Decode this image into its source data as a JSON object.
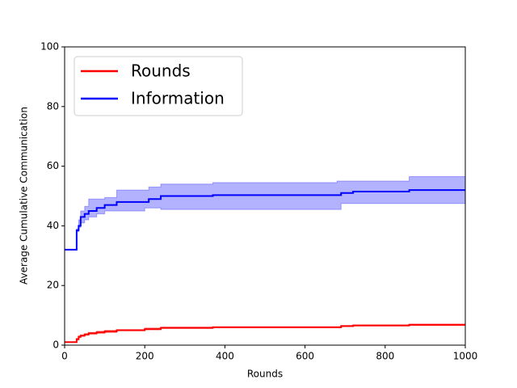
{
  "chart_data": {
    "type": "line",
    "xlabel": "Rounds",
    "ylabel": "Average Cumulative Communication",
    "xlim": [
      0,
      1000
    ],
    "xticks": [
      0,
      200,
      400,
      600,
      800,
      1000
    ],
    "ylim": [
      0,
      100
    ],
    "yticks": [
      0,
      20,
      40,
      60,
      80,
      100
    ],
    "grid": false,
    "legend": "upper left",
    "drawstyle": "steps-post",
    "band_opacity": 0.3,
    "series": [
      {
        "name": "Rounds",
        "color": "#ff0000",
        "x": [
          0,
          30,
          35,
          40,
          50,
          60,
          80,
          100,
          130,
          200,
          240,
          370,
          690,
          720,
          860,
          1000
        ],
        "values": [
          1,
          2,
          2.8,
          3.2,
          3.6,
          4,
          4.3,
          4.6,
          5,
          5.4,
          5.8,
          6,
          6.4,
          6.6,
          6.8,
          6.8
        ],
        "lower": [
          1,
          1.7,
          2.5,
          2.9,
          3.3,
          3.6,
          3.9,
          4.2,
          4.8,
          5.1,
          5.6,
          5.8,
          6.2,
          6.4,
          6.6,
          6.6
        ],
        "upper": [
          1,
          2.3,
          3.1,
          3.5,
          3.9,
          4.3,
          4.7,
          5,
          5.2,
          5.8,
          6.1,
          6.2,
          6.6,
          6.8,
          7.1,
          7.1
        ]
      },
      {
        "name": "Information",
        "color": "#0000ff",
        "x": [
          0,
          30,
          35,
          40,
          50,
          60,
          80,
          100,
          130,
          200,
          210,
          240,
          370,
          680,
          690,
          720,
          860,
          1000
        ],
        "values": [
          32,
          38.5,
          40,
          43,
          44,
          45,
          46,
          47,
          48,
          48,
          49,
          50,
          50.3,
          50.3,
          51,
          51.5,
          52,
          52
        ],
        "lower": [
          32,
          38,
          39.5,
          41,
          42,
          43,
          44,
          45,
          45,
          46,
          46,
          45.5,
          45.5,
          45.5,
          47.5,
          47.5,
          47.5,
          47.5
        ],
        "upper": [
          32,
          39,
          42,
          45,
          46.5,
          49,
          49,
          49.5,
          52,
          52,
          53,
          54,
          54.5,
          55,
          55,
          55,
          56.5,
          56.5
        ]
      }
    ]
  }
}
